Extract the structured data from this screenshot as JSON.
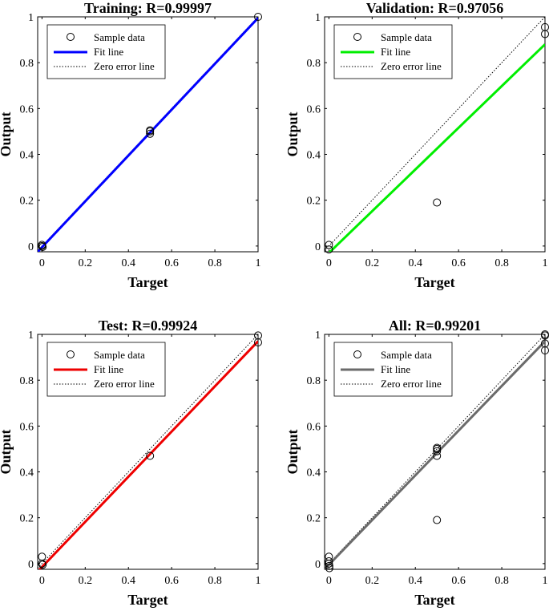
{
  "chart_data": [
    {
      "type": "scatter",
      "title": "Training: R=0.99997",
      "xlabel": "Target",
      "ylabel": "Output",
      "xlim": [
        -0.02,
        1.0
      ],
      "ylim": [
        -0.025,
        1.0
      ],
      "xticks": [
        "0",
        "0.2",
        "0.4",
        "0.6",
        "0.8",
        "1"
      ],
      "yticks": [
        "0",
        "0.2",
        "0.4",
        "0.6",
        "0.8",
        "1"
      ],
      "fit_color": "#0000ff",
      "fit": {
        "slope": 1.0,
        "intercept": -0.005
      },
      "points": [
        [
          0,
          0
        ],
        [
          0,
          0.005
        ],
        [
          0.003,
          -0.004
        ],
        [
          0.5,
          0.49
        ],
        [
          0.5,
          0.5
        ],
        [
          0.5,
          0.505
        ],
        [
          1,
          1
        ]
      ],
      "legend": [
        "Sample data",
        "Fit line",
        "Zero error line"
      ]
    },
    {
      "type": "scatter",
      "title": "Validation: R=0.97056",
      "xlabel": "Target",
      "ylabel": "Output",
      "xlim": [
        -0.02,
        1.0
      ],
      "ylim": [
        -0.025,
        1.0
      ],
      "xticks": [
        "0",
        "0.2",
        "0.4",
        "0.6",
        "0.8",
        "1"
      ],
      "yticks": [
        "0",
        "0.2",
        "0.4",
        "0.6",
        "0.8",
        "1"
      ],
      "fit_color": "#00ee00",
      "fit": {
        "slope": 0.91,
        "intercept": -0.03
      },
      "points": [
        [
          0,
          0.005
        ],
        [
          0,
          -0.015
        ],
        [
          0.5,
          0.19
        ],
        [
          1,
          0.955
        ],
        [
          1,
          0.925
        ]
      ],
      "legend": [
        "Sample data",
        "Fit line",
        "Zero error line"
      ]
    },
    {
      "type": "scatter",
      "title": "Test: R=0.99924",
      "xlabel": "Target",
      "ylabel": "Output",
      "xlim": [
        -0.02,
        1.0
      ],
      "ylim": [
        -0.025,
        1.0
      ],
      "xticks": [
        "0",
        "0.2",
        "0.4",
        "0.6",
        "0.8",
        "1"
      ],
      "yticks": [
        "0",
        "0.2",
        "0.4",
        "0.6",
        "0.8",
        "1"
      ],
      "fit_color": "#ee0000",
      "fit": {
        "slope": 0.985,
        "intercept": -0.015
      },
      "points": [
        [
          0,
          0.03
        ],
        [
          0,
          0.0
        ],
        [
          0.003,
          -0.005
        ],
        [
          0.5,
          0.47
        ],
        [
          1,
          0.995
        ],
        [
          1,
          0.965
        ]
      ],
      "legend": [
        "Sample data",
        "Fit line",
        "Zero error line"
      ]
    },
    {
      "type": "scatter",
      "title": "All: R=0.99201",
      "xlabel": "Target",
      "ylabel": "Output",
      "xlim": [
        -0.02,
        1.0
      ],
      "ylim": [
        -0.025,
        1.0
      ],
      "xticks": [
        "0",
        "0.2",
        "0.4",
        "0.6",
        "0.8",
        "1"
      ],
      "yticks": [
        "0",
        "0.2",
        "0.4",
        "0.6",
        "0.8",
        "1"
      ],
      "fit_color": "#6b6b6b",
      "fit": {
        "slope": 0.975,
        "intercept": -0.005
      },
      "points": [
        [
          0,
          0.03
        ],
        [
          0,
          0.01
        ],
        [
          0,
          0.0
        ],
        [
          0.002,
          -0.01
        ],
        [
          0.002,
          -0.02
        ],
        [
          0.5,
          0.19
        ],
        [
          0.5,
          0.47
        ],
        [
          0.5,
          0.49
        ],
        [
          0.5,
          0.5
        ],
        [
          0.5,
          0.505
        ],
        [
          1,
          1.0
        ],
        [
          1,
          0.995
        ],
        [
          1,
          0.96
        ],
        [
          1,
          0.93
        ]
      ],
      "legend": [
        "Sample data",
        "Fit line",
        "Zero error line"
      ]
    }
  ]
}
